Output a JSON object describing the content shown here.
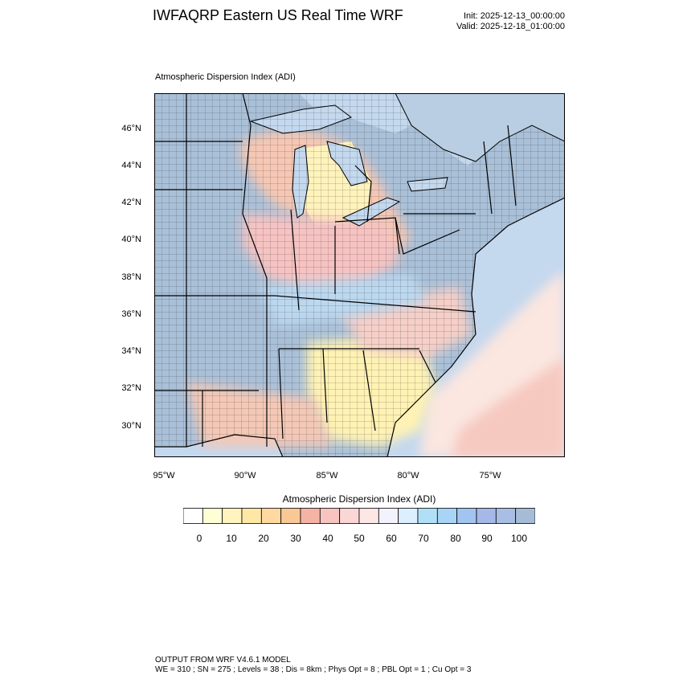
{
  "title": "IWFAQRP Eastern US Real Time WRF",
  "init": "Init: 2025-12-13_00:00:00",
  "valid": "Valid: 2025-12-18_01:00:00",
  "panel_title": "Atmospheric Dispersion Index   (ADI)",
  "lat_labels": [
    "46°N",
    "44°N",
    "42°N",
    "40°N",
    "38°N",
    "36°N",
    "34°N",
    "32°N",
    "30°N"
  ],
  "lon_labels": [
    "95°W",
    "90°W",
    "85°W",
    "80°W",
    "75°W"
  ],
  "colorbar": {
    "title": "Atmospheric Dispersion Index  (ADI)",
    "tick_labels": [
      "0",
      "10",
      "20",
      "30",
      "40",
      "50",
      "60",
      "70",
      "80",
      "90",
      "100"
    ],
    "colors": [
      "#ffffff",
      "#ffffd4",
      "#fff4c0",
      "#ffe8a6",
      "#ffd9a0",
      "#f9c896",
      "#f5b3a6",
      "#f7c4c0",
      "#fad6d4",
      "#fce6e6",
      "#f3f3ff",
      "#dcefff",
      "#b0e0f8",
      "#a8d4f6",
      "#a2c4f0",
      "#a6b8e8",
      "#a8bee4",
      "#a6bcd6"
    ]
  },
  "map_colors": {
    "ocean": "#c8dcf2",
    "land_base": "#a9c0d8",
    "warm": "#f7c9b0",
    "yellow": "#fff3b8",
    "pink": "#f6c2c4",
    "light_blue": "#c9e4f4",
    "border": "#000000"
  },
  "footer": {
    "line1": "OUTPUT FROM WRF V4.6.1 MODEL",
    "line2": "WE = 310 ; SN = 275 ; Levels = 38 ; Dis = 8km ; Phys Opt = 8 ; PBL Opt = 1 ; Cu Opt = 3"
  }
}
